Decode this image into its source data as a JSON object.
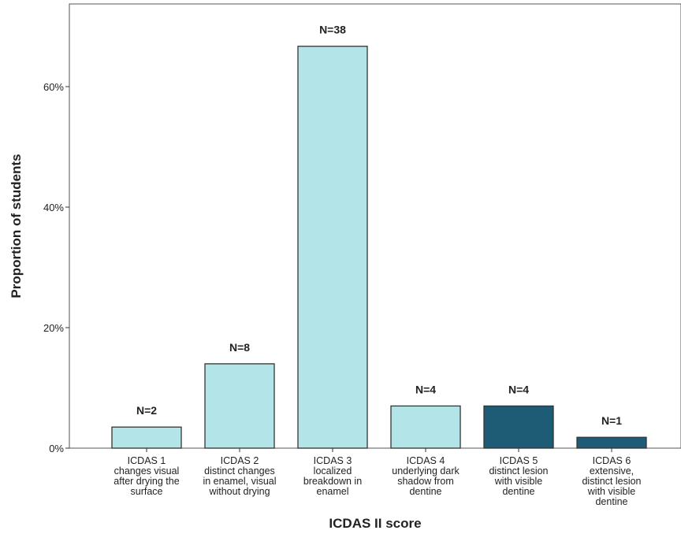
{
  "chart_data": {
    "type": "bar",
    "title": "",
    "xlabel": "ICDAS II score",
    "ylabel": "Proportion of students",
    "ylim": [
      0,
      0.7
    ],
    "yticks": [
      0,
      0.2,
      0.4,
      0.6
    ],
    "ytick_labels": [
      "0%",
      "20%",
      "40%",
      "60%"
    ],
    "grid": false,
    "categories": [
      [
        "ICDAS 1",
        "changes visual",
        "after drying the",
        "surface"
      ],
      [
        "ICDAS 2",
        "distinct changes",
        "in enamel, visual",
        "without drying"
      ],
      [
        "ICDAS 3",
        "localized",
        "breakdown in",
        "enamel"
      ],
      [
        "ICDAS 4",
        "underlying dark",
        "shadow from",
        "dentine"
      ],
      [
        "ICDAS 5",
        "distinct lesion",
        "with visible",
        "dentine"
      ],
      [
        "ICDAS 6",
        "extensive,",
        "distinct lesion",
        "with visible",
        "dentine"
      ]
    ],
    "values": [
      0.035,
      0.14,
      0.667,
      0.07,
      0.07,
      0.018
    ],
    "data_labels": [
      "N=2",
      "N=8",
      "N=38",
      "N=4",
      "N=4",
      "N=1"
    ],
    "colors": [
      "#b3e5e8",
      "#b3e5e8",
      "#b3e5e8",
      "#b3e5e8",
      "#1e5b75",
      "#1e5b75"
    ],
    "bar_edge_color": "#333333"
  }
}
